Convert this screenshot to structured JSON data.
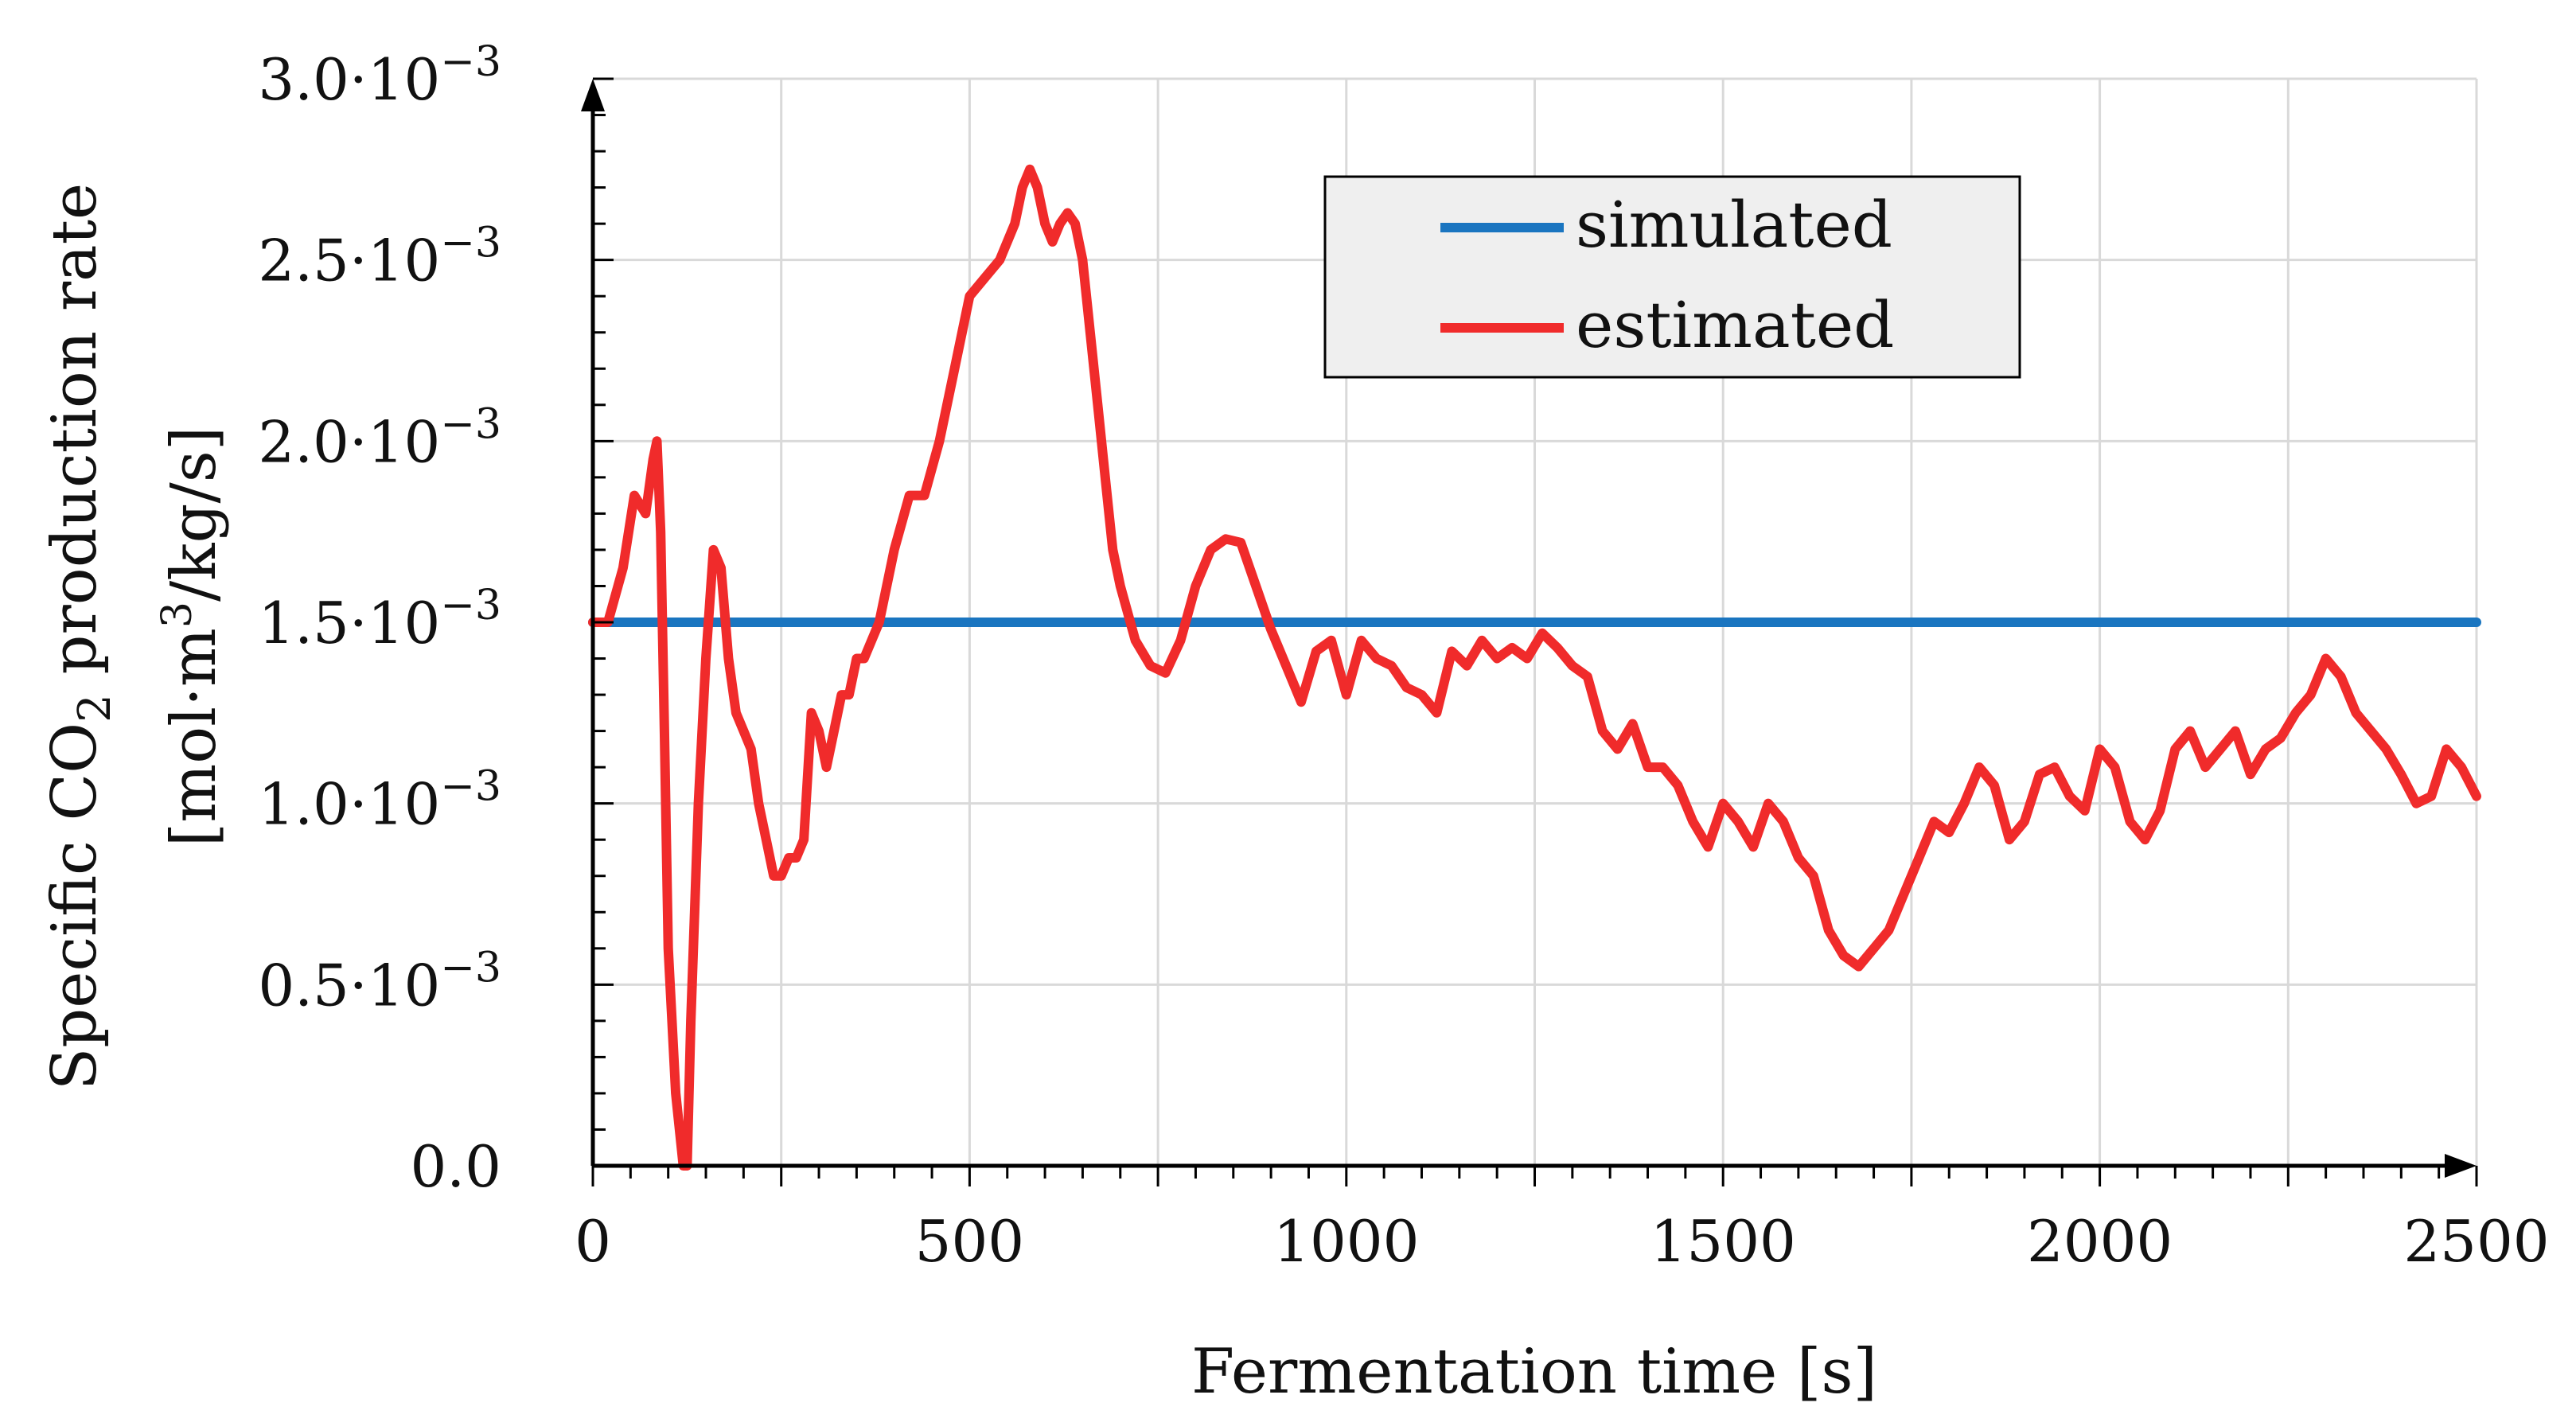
{
  "chart_data": {
    "type": "line",
    "title": "",
    "xlabel": "Fermentation time [s]",
    "ylabel_line1": "Specific CO",
    "ylabel_sub": "2",
    "ylabel_line1_rest": " production rate",
    "ylabel_line2": "[mol·m",
    "ylabel_sup": "3",
    "ylabel_line2_rest": "/kg/s]",
    "xlim": [
      0,
      2500
    ],
    "ylim": [
      0,
      0.003
    ],
    "x_ticks": [
      {
        "value": 0,
        "label": "0"
      },
      {
        "value": 500,
        "label": "500"
      },
      {
        "value": 1000,
        "label": "1000"
      },
      {
        "value": 1500,
        "label": "1500"
      },
      {
        "value": 2000,
        "label": "2000"
      },
      {
        "value": 2500,
        "label": "2500"
      }
    ],
    "y_ticks": [
      {
        "value": 0,
        "label": "0.0",
        "exp": ""
      },
      {
        "value": 0.0005,
        "label": "0.5·10",
        "exp": "−3"
      },
      {
        "value": 0.001,
        "label": "1.0·10",
        "exp": "−3"
      },
      {
        "value": 0.0015,
        "label": "1.5·10",
        "exp": "−3"
      },
      {
        "value": 0.002,
        "label": "2.0·10",
        "exp": "−3"
      },
      {
        "value": 0.0025,
        "label": "2.5·10",
        "exp": "−3"
      },
      {
        "value": 0.003,
        "label": "3.0·10",
        "exp": "−3"
      }
    ],
    "grid": true,
    "legend_position": "top-right",
    "series": [
      {
        "name": "simulated",
        "color": "#1a75c0",
        "x": [
          0,
          2500
        ],
        "y": [
          0.0015,
          0.0015
        ]
      },
      {
        "name": "estimated",
        "color": "#f02b2b",
        "x": [
          0,
          20,
          40,
          55,
          70,
          80,
          85,
          90,
          95,
          100,
          110,
          120,
          125,
          130,
          140,
          150,
          160,
          170,
          180,
          190,
          200,
          210,
          220,
          230,
          240,
          250,
          260,
          270,
          280,
          290,
          300,
          310,
          320,
          330,
          340,
          350,
          360,
          380,
          400,
          420,
          440,
          460,
          480,
          500,
          520,
          540,
          560,
          570,
          580,
          590,
          600,
          610,
          620,
          630,
          640,
          650,
          660,
          670,
          680,
          690,
          700,
          720,
          740,
          760,
          780,
          800,
          820,
          840,
          860,
          880,
          900,
          920,
          940,
          960,
          980,
          1000,
          1020,
          1040,
          1060,
          1080,
          1100,
          1120,
          1140,
          1160,
          1180,
          1200,
          1220,
          1240,
          1260,
          1280,
          1300,
          1320,
          1340,
          1360,
          1380,
          1400,
          1420,
          1440,
          1460,
          1480,
          1500,
          1520,
          1540,
          1560,
          1580,
          1600,
          1620,
          1640,
          1660,
          1680,
          1700,
          1720,
          1740,
          1760,
          1780,
          1800,
          1820,
          1840,
          1860,
          1880,
          1900,
          1920,
          1940,
          1960,
          1980,
          2000,
          2020,
          2040,
          2060,
          2080,
          2100,
          2120,
          2140,
          2160,
          2180,
          2200,
          2220,
          2240,
          2260,
          2280,
          2300,
          2320,
          2340,
          2360,
          2380,
          2400,
          2420,
          2440,
          2460,
          2480,
          2500
        ],
        "y": [
          0.0015,
          0.0015,
          0.00165,
          0.00185,
          0.0018,
          0.00195,
          0.002,
          0.00175,
          0.0012,
          0.0006,
          0.0002,
          0.0,
          0.0,
          0.0004,
          0.001,
          0.0014,
          0.0017,
          0.00165,
          0.0014,
          0.00125,
          0.0012,
          0.00115,
          0.001,
          0.0009,
          0.0008,
          0.0008,
          0.00085,
          0.00085,
          0.0009,
          0.00125,
          0.0012,
          0.0011,
          0.0012,
          0.0013,
          0.0013,
          0.0014,
          0.0014,
          0.0015,
          0.0017,
          0.00185,
          0.00185,
          0.002,
          0.0022,
          0.0024,
          0.00245,
          0.0025,
          0.0026,
          0.0027,
          0.00275,
          0.0027,
          0.0026,
          0.00255,
          0.0026,
          0.00263,
          0.0026,
          0.0025,
          0.0023,
          0.0021,
          0.0019,
          0.0017,
          0.0016,
          0.00145,
          0.00138,
          0.00136,
          0.00145,
          0.0016,
          0.0017,
          0.00173,
          0.00172,
          0.0016,
          0.00148,
          0.00138,
          0.00128,
          0.00142,
          0.00145,
          0.0013,
          0.00145,
          0.0014,
          0.00138,
          0.00132,
          0.0013,
          0.00125,
          0.00142,
          0.00138,
          0.00145,
          0.0014,
          0.00143,
          0.0014,
          0.00147,
          0.00143,
          0.00138,
          0.00135,
          0.0012,
          0.00115,
          0.00122,
          0.0011,
          0.0011,
          0.00105,
          0.00095,
          0.00088,
          0.001,
          0.00095,
          0.00088,
          0.001,
          0.00095,
          0.00085,
          0.0008,
          0.00065,
          0.00058,
          0.00055,
          0.0006,
          0.00065,
          0.00075,
          0.00085,
          0.00095,
          0.00092,
          0.001,
          0.0011,
          0.00105,
          0.0009,
          0.00095,
          0.00108,
          0.0011,
          0.00102,
          0.00098,
          0.00115,
          0.0011,
          0.00095,
          0.0009,
          0.00098,
          0.00115,
          0.0012,
          0.0011,
          0.00115,
          0.0012,
          0.00108,
          0.00115,
          0.00118,
          0.00125,
          0.0013,
          0.0014,
          0.00135,
          0.00125,
          0.0012,
          0.00115,
          0.00108,
          0.001,
          0.00102,
          0.00115,
          0.0011,
          0.00102
        ]
      }
    ]
  }
}
